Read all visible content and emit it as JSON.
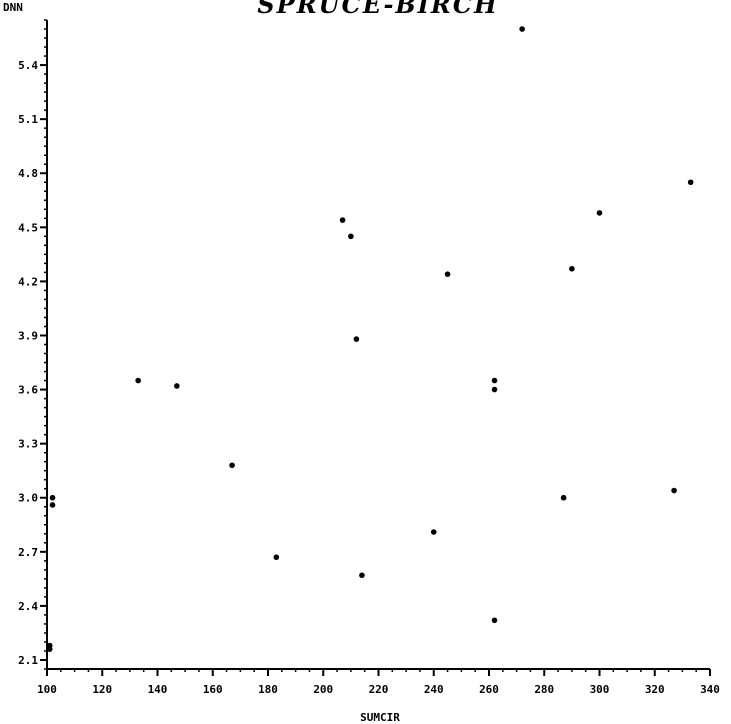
{
  "chart_data": {
    "type": "scatter",
    "title": "SPRUCE-BIRCH",
    "xlabel": "SUMCIR",
    "ylabel": "DNN",
    "xlim": [
      100,
      340
    ],
    "ylim": [
      2.05,
      5.65
    ],
    "x_ticks": [
      100,
      120,
      140,
      160,
      180,
      200,
      220,
      240,
      260,
      280,
      300,
      320,
      340
    ],
    "x_tick_labels": [
      "100",
      "120",
      "140",
      "160",
      "180",
      "200",
      "220",
      "240",
      "260",
      "280",
      "300",
      "320",
      "340"
    ],
    "y_ticks": [
      2.1,
      2.4,
      2.7,
      3.0,
      3.3,
      3.6,
      3.9,
      4.2,
      4.5,
      4.8,
      5.1,
      5.4
    ],
    "y_tick_labels": [
      "2.1",
      "2.4",
      "2.7",
      "3.0",
      "3.3",
      "3.6",
      "3.9",
      "4.2",
      "4.5",
      "4.8",
      "5.1",
      "5.4"
    ],
    "grid": false,
    "legend": "none",
    "points": [
      {
        "x": 102,
        "y": 3.0
      },
      {
        "x": 102,
        "y": 2.96
      },
      {
        "x": 101,
        "y": 2.18
      },
      {
        "x": 101,
        "y": 2.16
      },
      {
        "x": 133,
        "y": 3.65
      },
      {
        "x": 147,
        "y": 3.62
      },
      {
        "x": 167,
        "y": 3.18
      },
      {
        "x": 183,
        "y": 2.67
      },
      {
        "x": 207,
        "y": 4.54
      },
      {
        "x": 210,
        "y": 4.45
      },
      {
        "x": 212,
        "y": 3.88
      },
      {
        "x": 214,
        "y": 2.57
      },
      {
        "x": 240,
        "y": 2.81
      },
      {
        "x": 245,
        "y": 4.24
      },
      {
        "x": 262,
        "y": 3.65
      },
      {
        "x": 262,
        "y": 3.6
      },
      {
        "x": 262,
        "y": 2.32
      },
      {
        "x": 272,
        "y": 5.6
      },
      {
        "x": 287,
        "y": 3.0
      },
      {
        "x": 290,
        "y": 4.27
      },
      {
        "x": 300,
        "y": 4.58
      },
      {
        "x": 327,
        "y": 3.04
      },
      {
        "x": 333,
        "y": 4.75
      }
    ]
  }
}
